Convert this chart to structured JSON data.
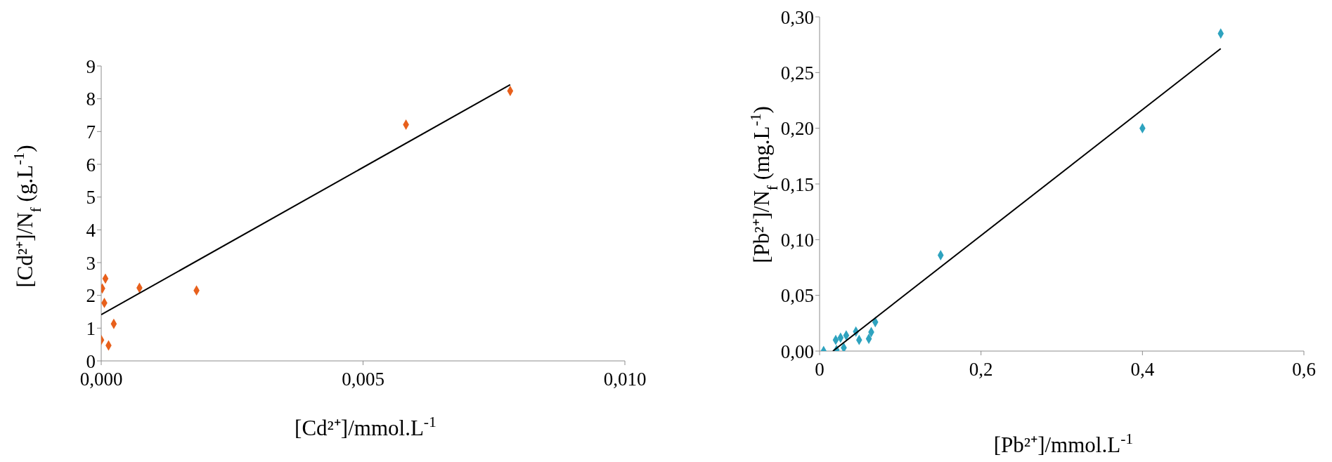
{
  "chart_data": [
    {
      "type": "scatter",
      "xlabel": "[Cd²⁺]/mmol.L$^{-1}$",
      "ylabel": "[Cd²⁺]/N$_{f}$ (g.L$^{-1}$)",
      "xlim": [
        0,
        0.01
      ],
      "xticks": [
        {
          "value": 0,
          "label": "0,000"
        },
        {
          "value": 0.005,
          "label": "0,005"
        },
        {
          "value": 0.01,
          "label": "0,010"
        }
      ],
      "ylim": [
        0,
        9
      ],
      "yticks": [
        0,
        1,
        2,
        3,
        4,
        5,
        6,
        7,
        8,
        9
      ],
      "series": [
        {
          "marker": "diamond",
          "color": "#e8601c",
          "x": [
            0.00781,
            0.00582,
            0.00182,
            0.00073,
            8e-05,
            2e-05,
            6e-05,
            0.00024,
            0.0,
            0.00014
          ],
          "values": [
            8.24,
            7.21,
            2.15,
            2.23,
            2.51,
            2.21,
            1.77,
            1.13,
            0.64,
            0.47
          ]
        },
        {
          "type": "line",
          "marker": "none",
          "color": "#000000",
          "x": [
            0,
            0.00781
          ],
          "values": [
            1.41,
            8.43
          ]
        }
      ]
    },
    {
      "type": "scatter",
      "xlabel": "[Pb²⁺]/mmol.L$^{-1}$",
      "ylabel": "[Pb²⁺]/N$_{f}$ (mg.L$^{-1}$)",
      "xlim": [
        0,
        0.6
      ],
      "xticks": [
        0,
        {
          "value": 0.2,
          "label": "0,2"
        },
        {
          "value": 0.4,
          "label": "0,4"
        },
        {
          "value": 0.6,
          "label": "0,6"
        }
      ],
      "ylim": [
        0,
        0.3
      ],
      "yticks": [
        {
          "value": 0,
          "label": "0,00"
        },
        {
          "value": 0.05,
          "label": "0,05"
        },
        {
          "value": 0.1,
          "label": "0,10"
        },
        {
          "value": 0.15,
          "label": "0,15"
        },
        {
          "value": 0.2,
          "label": "0,20"
        },
        {
          "value": 0.25,
          "label": "0,25"
        },
        {
          "value": 0.3,
          "label": "0,30"
        }
      ],
      "series": [
        {
          "marker": "diamond",
          "color": "#2ea3bf",
          "x": [
            0.497,
            0.4,
            0.15,
            0.069,
            0.005,
            0.021,
            0.03,
            0.02,
            0.026,
            0.033,
            0.045,
            0.049,
            0.061,
            0.064
          ],
          "values": [
            0.285,
            0.2,
            0.086,
            0.026,
            0.0,
            0.001,
            0.003,
            0.01,
            0.012,
            0.014,
            0.0175,
            0.01,
            0.011,
            0.017
          ]
        },
        {
          "type": "line",
          "marker": "none",
          "color": "#000000",
          "x": [
            0.0165,
            0.497
          ],
          "values": [
            0,
            0.2715
          ]
        }
      ]
    }
  ]
}
